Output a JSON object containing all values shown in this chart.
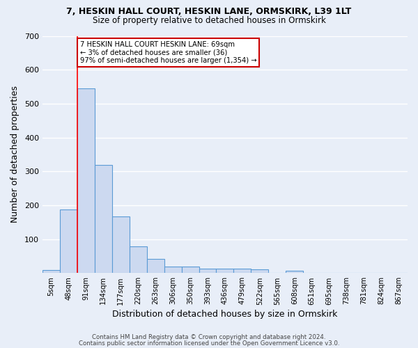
{
  "title1": "7, HESKIN HALL COURT, HESKIN LANE, ORMSKIRK, L39 1LT",
  "title2": "Size of property relative to detached houses in Ormskirk",
  "xlabel": "Distribution of detached houses by size in Ormskirk",
  "ylabel": "Number of detached properties",
  "categories": [
    "5sqm",
    "48sqm",
    "91sqm",
    "134sqm",
    "177sqm",
    "220sqm",
    "263sqm",
    "306sqm",
    "350sqm",
    "393sqm",
    "436sqm",
    "479sqm",
    "522sqm",
    "565sqm",
    "608sqm",
    "651sqm",
    "695sqm",
    "738sqm",
    "781sqm",
    "824sqm",
    "867sqm"
  ],
  "bar_heights": [
    8,
    188,
    545,
    318,
    167,
    78,
    42,
    20,
    20,
    12,
    14,
    14,
    10,
    0,
    7,
    0,
    0,
    0,
    0,
    0,
    0
  ],
  "bar_color": "#ccd9f0",
  "bar_edge_color": "#5b9bd5",
  "background_color": "#e8eef8",
  "grid_color": "#ffffff",
  "red_line_x": 1.5,
  "annotation_text": "7 HESKIN HALL COURT HESKIN LANE: 69sqm\n← 3% of detached houses are smaller (36)\n97% of semi-detached houses are larger (1,354) →",
  "annotation_box_color": "#ffffff",
  "annotation_box_edge": "#cc0000",
  "footer1": "Contains HM Land Registry data © Crown copyright and database right 2024.",
  "footer2": "Contains public sector information licensed under the Open Government Licence v3.0.",
  "ylim": [
    0,
    700
  ],
  "yticks": [
    0,
    100,
    200,
    300,
    400,
    500,
    600,
    700
  ]
}
